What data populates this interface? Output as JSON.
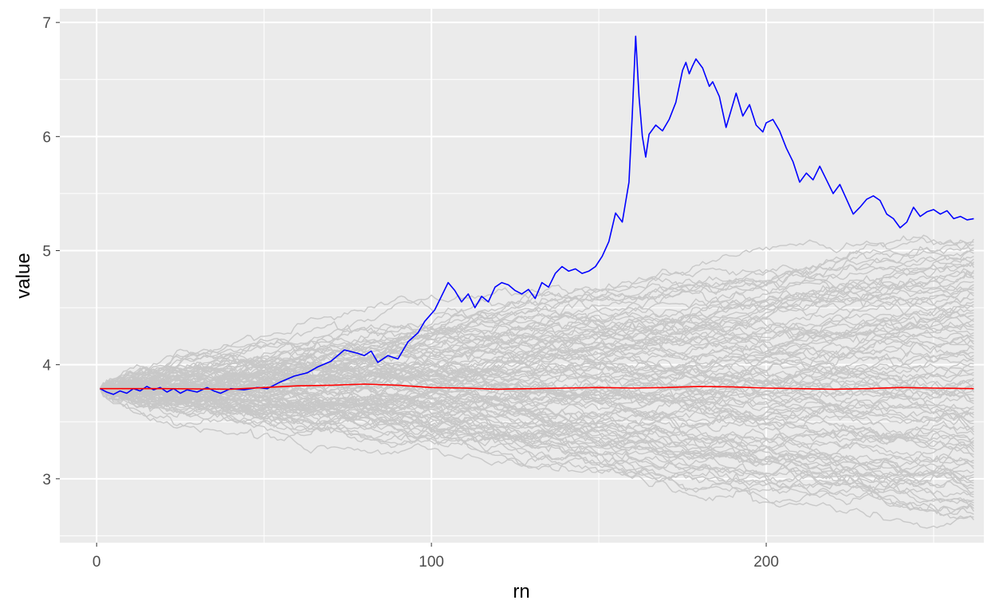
{
  "chart_data": {
    "type": "line",
    "xlabel": "rn",
    "ylabel": "value",
    "xlim": [
      -11,
      265
    ],
    "ylim": [
      2.44,
      7.12
    ],
    "x_ticks": [
      0,
      100,
      200
    ],
    "x_tick_labels": [
      "0",
      "100",
      "200"
    ],
    "y_ticks": [
      3,
      4,
      5,
      6,
      7
    ],
    "y_tick_labels": [
      "3",
      "4",
      "5",
      "6",
      "7"
    ],
    "grid": true,
    "legend": "none",
    "colors": {
      "panel": "#ebebeb",
      "grid": "#ffffff",
      "simulations": "#c8c8c8",
      "highlight": "#0000ff",
      "mean": "#ff0000"
    },
    "simulations": {
      "count": 100,
      "start": 3.79,
      "x_range": [
        1,
        262
      ],
      "end_range": [
        2.64,
        5.1
      ],
      "color": "#c8c8c8"
    },
    "series": [
      {
        "color": "#0000ff",
        "points": [
          [
            1,
            3.79
          ],
          [
            3,
            3.76
          ],
          [
            5,
            3.74
          ],
          [
            7,
            3.77
          ],
          [
            9,
            3.75
          ],
          [
            11,
            3.79
          ],
          [
            13,
            3.77
          ],
          [
            15,
            3.81
          ],
          [
            17,
            3.78
          ],
          [
            19,
            3.8
          ],
          [
            21,
            3.76
          ],
          [
            23,
            3.79
          ],
          [
            25,
            3.75
          ],
          [
            27,
            3.78
          ],
          [
            30,
            3.76
          ],
          [
            33,
            3.8
          ],
          [
            35,
            3.77
          ],
          [
            37,
            3.75
          ],
          [
            40,
            3.79
          ],
          [
            44,
            3.78
          ],
          [
            48,
            3.8
          ],
          [
            51,
            3.79
          ],
          [
            55,
            3.85
          ],
          [
            59,
            3.9
          ],
          [
            63,
            3.93
          ],
          [
            66,
            3.98
          ],
          [
            70,
            4.03
          ],
          [
            74,
            4.13
          ],
          [
            78,
            4.1
          ],
          [
            80,
            4.08
          ],
          [
            82,
            4.12
          ],
          [
            84,
            4.02
          ],
          [
            87,
            4.08
          ],
          [
            90,
            4.05
          ],
          [
            93,
            4.2
          ],
          [
            96,
            4.28
          ],
          [
            98,
            4.38
          ],
          [
            101,
            4.48
          ],
          [
            103,
            4.6
          ],
          [
            105,
            4.72
          ],
          [
            107,
            4.65
          ],
          [
            109,
            4.55
          ],
          [
            111,
            4.62
          ],
          [
            113,
            4.5
          ],
          [
            115,
            4.6
          ],
          [
            117,
            4.55
          ],
          [
            119,
            4.68
          ],
          [
            121,
            4.72
          ],
          [
            123,
            4.7
          ],
          [
            125,
            4.65
          ],
          [
            127,
            4.62
          ],
          [
            129,
            4.66
          ],
          [
            131,
            4.58
          ],
          [
            133,
            4.72
          ],
          [
            135,
            4.68
          ],
          [
            137,
            4.8
          ],
          [
            139,
            4.86
          ],
          [
            141,
            4.82
          ],
          [
            143,
            4.84
          ],
          [
            145,
            4.8
          ],
          [
            147,
            4.82
          ],
          [
            149,
            4.86
          ],
          [
            151,
            4.95
          ],
          [
            153,
            5.08
          ],
          [
            155,
            5.33
          ],
          [
            157,
            5.25
          ],
          [
            159,
            5.6
          ],
          [
            160,
            6.2
          ],
          [
            161,
            6.88
          ],
          [
            162,
            6.35
          ],
          [
            163,
            6.0
          ],
          [
            164,
            5.82
          ],
          [
            165,
            6.02
          ],
          [
            167,
            6.1
          ],
          [
            169,
            6.05
          ],
          [
            171,
            6.15
          ],
          [
            173,
            6.3
          ],
          [
            175,
            6.58
          ],
          [
            176,
            6.65
          ],
          [
            177,
            6.55
          ],
          [
            178,
            6.62
          ],
          [
            179,
            6.68
          ],
          [
            181,
            6.6
          ],
          [
            183,
            6.44
          ],
          [
            184,
            6.48
          ],
          [
            186,
            6.35
          ],
          [
            188,
            6.08
          ],
          [
            190,
            6.28
          ],
          [
            191,
            6.38
          ],
          [
            193,
            6.18
          ],
          [
            195,
            6.28
          ],
          [
            197,
            6.1
          ],
          [
            199,
            6.04
          ],
          [
            200,
            6.12
          ],
          [
            202,
            6.15
          ],
          [
            204,
            6.05
          ],
          [
            206,
            5.9
          ],
          [
            208,
            5.78
          ],
          [
            210,
            5.6
          ],
          [
            212,
            5.68
          ],
          [
            214,
            5.62
          ],
          [
            216,
            5.74
          ],
          [
            218,
            5.62
          ],
          [
            220,
            5.5
          ],
          [
            222,
            5.58
          ],
          [
            224,
            5.45
          ],
          [
            226,
            5.32
          ],
          [
            228,
            5.38
          ],
          [
            230,
            5.45
          ],
          [
            232,
            5.48
          ],
          [
            234,
            5.44
          ],
          [
            236,
            5.32
          ],
          [
            238,
            5.28
          ],
          [
            240,
            5.2
          ],
          [
            242,
            5.25
          ],
          [
            244,
            5.38
          ],
          [
            246,
            5.3
          ],
          [
            248,
            5.34
          ],
          [
            250,
            5.36
          ],
          [
            252,
            5.32
          ],
          [
            254,
            5.35
          ],
          [
            256,
            5.28
          ],
          [
            258,
            5.3
          ],
          [
            260,
            5.27
          ],
          [
            262,
            5.28
          ]
        ]
      },
      {
        "color": "#ff0000",
        "points": [
          [
            1,
            3.79
          ],
          [
            20,
            3.79
          ],
          [
            40,
            3.785
          ],
          [
            50,
            3.8
          ],
          [
            60,
            3.815
          ],
          [
            70,
            3.82
          ],
          [
            80,
            3.83
          ],
          [
            90,
            3.82
          ],
          [
            100,
            3.8
          ],
          [
            110,
            3.795
          ],
          [
            120,
            3.785
          ],
          [
            130,
            3.79
          ],
          [
            140,
            3.795
          ],
          [
            150,
            3.8
          ],
          [
            160,
            3.795
          ],
          [
            170,
            3.8
          ],
          [
            180,
            3.81
          ],
          [
            190,
            3.805
          ],
          [
            200,
            3.795
          ],
          [
            210,
            3.79
          ],
          [
            220,
            3.785
          ],
          [
            230,
            3.79
          ],
          [
            240,
            3.8
          ],
          [
            250,
            3.795
          ],
          [
            262,
            3.79
          ]
        ]
      }
    ]
  }
}
